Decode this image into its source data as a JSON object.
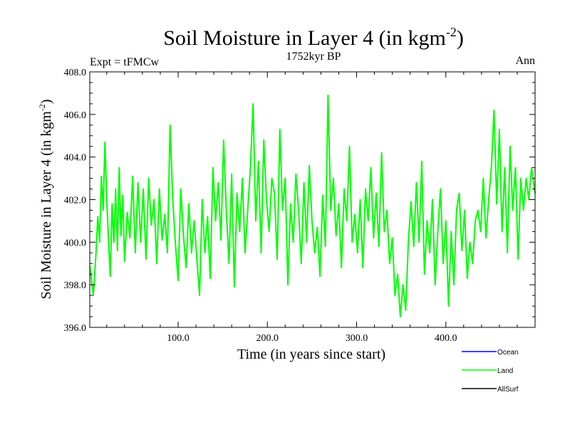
{
  "chart_data": {
    "type": "line",
    "title": "Soil Moisture in Layer 4 (in kgm",
    "title_sup": "-2",
    "title_close": ")",
    "subtitle": "1752kyr BP",
    "left_label": "Expt = tFMCw",
    "right_label": "Ann",
    "xlabel": "Time (in years since start)",
    "ylabel": "Soil Moisture in Layer 4 (in kgm",
    "ylabel_sup": "-2",
    "ylabel_close": ")",
    "xlim": [
      1,
      500
    ],
    "ylim": [
      396.0,
      408.0
    ],
    "xticks": [
      100,
      200,
      300,
      400
    ],
    "xtick_labels": [
      "100.0",
      "200.0",
      "300.0",
      "400.0"
    ],
    "yticks": [
      396,
      398,
      400,
      402,
      404,
      406,
      408
    ],
    "ytick_labels": [
      "396.0",
      "398.0",
      "400.0",
      "402.0",
      "404.0",
      "406.0",
      "408.0"
    ],
    "legend": [
      {
        "name": "Ocean",
        "color": "#0000ff"
      },
      {
        "name": "Land",
        "color": "#00ff00"
      },
      {
        "name": "AllSurf",
        "color": "#000000"
      }
    ],
    "series": [
      {
        "name": "Land",
        "color": "#00ff00",
        "x": [
          1,
          5,
          8,
          10,
          12,
          14,
          16,
          18,
          20,
          22,
          24,
          26,
          28,
          30,
          32,
          34,
          36,
          38,
          40,
          43,
          46,
          49,
          52,
          55,
          58,
          61,
          64,
          67,
          70,
          73,
          76,
          79,
          82,
          85,
          88,
          91,
          94,
          97,
          100,
          103,
          106,
          109,
          112,
          115,
          118,
          121,
          124,
          127,
          130,
          133,
          136,
          139,
          142,
          145,
          148,
          151,
          154,
          157,
          160,
          163,
          166,
          169,
          172,
          175,
          178,
          181,
          184,
          187,
          190,
          193,
          196,
          199,
          202,
          205,
          208,
          211,
          214,
          217,
          220,
          223,
          226,
          229,
          232,
          235,
          238,
          241,
          244,
          247,
          250,
          253,
          256,
          259,
          262,
          265,
          268,
          271,
          274,
          277,
          280,
          283,
          286,
          289,
          292,
          295,
          298,
          301,
          304,
          307,
          310,
          313,
          316,
          319,
          322,
          325,
          328,
          331,
          334,
          337,
          340,
          343,
          346,
          349,
          352,
          355,
          358,
          361,
          364,
          367,
          370,
          373,
          376,
          379,
          382,
          385,
          388,
          391,
          394,
          397,
          400,
          403,
          406,
          409,
          412,
          415,
          418,
          421,
          424,
          427,
          430,
          433,
          436,
          439,
          442,
          445,
          448,
          451,
          454,
          457,
          460,
          463,
          466,
          469,
          472,
          475,
          478,
          481,
          484,
          487,
          490,
          493,
          496,
          500
        ],
        "y": [
          398.9,
          397.5,
          399.5,
          401.2,
          400.0,
          403.1,
          401.5,
          404.7,
          402.0,
          400.1,
          398.4,
          401.8,
          400.0,
          402.5,
          399.6,
          403.5,
          400.3,
          402.2,
          399.1,
          401.4,
          400.2,
          403.1,
          399.5,
          402.8,
          400.0,
          402.5,
          399.2,
          403.0,
          400.8,
          402.0,
          399.0,
          402.5,
          400.1,
          401.3,
          399.5,
          405.5,
          402.0,
          399.9,
          398.2,
          402.5,
          400.3,
          398.8,
          401.8,
          399.5,
          401.0,
          399.2,
          397.5,
          402.0,
          399.5,
          401.2,
          398.3,
          403.5,
          401.0,
          402.8,
          400.1,
          404.8,
          401.5,
          399.0,
          403.2,
          397.9,
          402.3,
          400.5,
          403.0,
          399.5,
          401.5,
          403.5,
          406.5,
          401.0,
          403.8,
          399.5,
          404.8,
          402.0,
          400.5,
          403.0,
          402.3,
          399.2,
          405.3,
          401.5,
          403.0,
          398.0,
          401.8,
          400.0,
          403.2,
          401.5,
          399.0,
          402.8,
          400.0,
          403.6,
          401.0,
          399.5,
          400.7,
          398.4,
          402.2,
          399.8,
          406.9,
          401.5,
          403.0,
          400.3,
          401.8,
          398.8,
          402.5,
          401.0,
          404.5,
          400.0,
          401.3,
          399.5,
          402.0,
          398.8,
          402.5,
          401.0,
          403.5,
          400.2,
          402.3,
          399.8,
          404.2,
          400.5,
          401.5,
          399.0,
          400.2,
          397.5,
          398.5,
          396.5,
          398.0,
          396.8,
          400.0,
          401.9,
          399.8,
          402.8,
          400.0,
          403.8,
          398.5,
          401.0,
          399.5,
          402.0,
          398.0,
          400.5,
          402.5,
          399.0,
          401.0,
          397.0,
          400.5,
          398.0,
          401.5,
          402.3,
          399.6,
          401.5,
          398.3,
          400.0,
          399.0,
          401.0,
          401.5,
          400.5,
          403.0,
          400.2,
          402.0,
          403.5,
          406.2,
          401.8,
          405.3,
          400.5,
          403.5,
          399.5,
          404.5,
          401.5,
          403.5,
          399.2,
          403.0,
          401.5,
          403.0,
          402.0,
          403.5,
          402.3
        ]
      }
    ]
  }
}
